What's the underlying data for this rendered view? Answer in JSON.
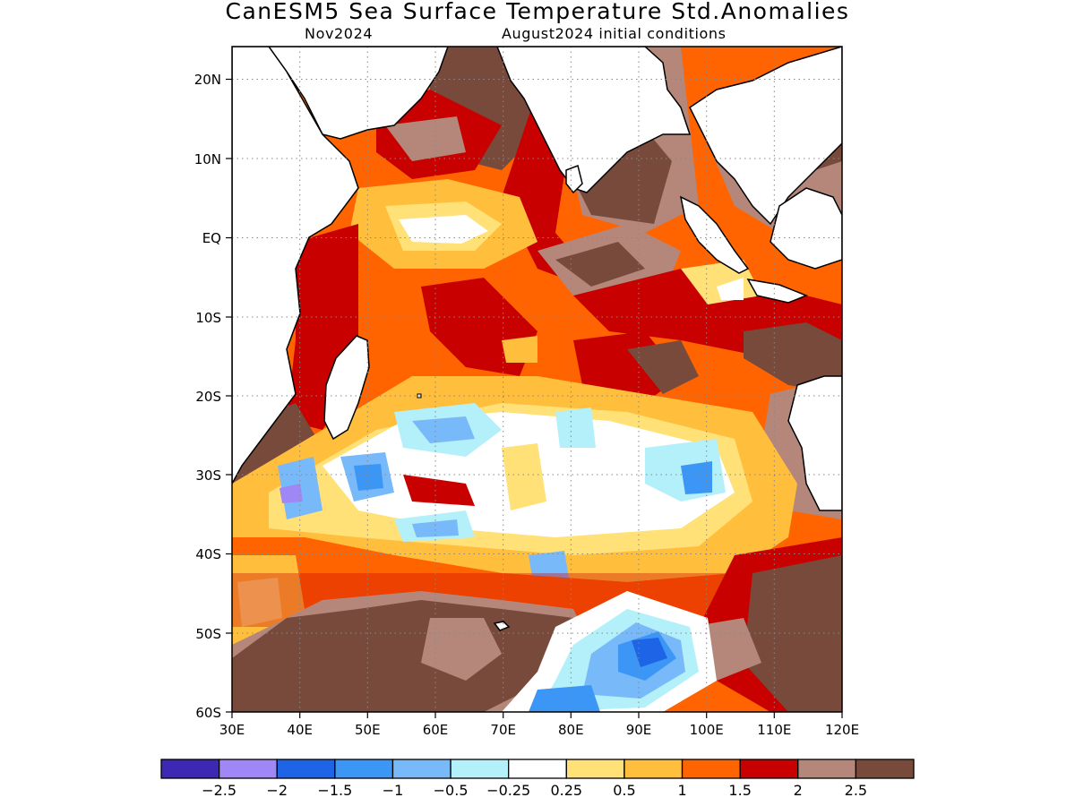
{
  "title": "CanESM5 Sea Surface Temperature Std.Anomalies",
  "subtitle_left": "Nov2024",
  "subtitle_right": "August2024 initial conditions",
  "map": {
    "lon_range": [
      30,
      120
    ],
    "lat_range": [
      -60,
      24
    ],
    "lon_ticks": [
      "30E",
      "40E",
      "50E",
      "60E",
      "70E",
      "80E",
      "90E",
      "100E",
      "110E",
      "120E"
    ],
    "lat_ticks": [
      "20N",
      "10N",
      "EQ",
      "10S",
      "20S",
      "30S",
      "40S",
      "50S",
      "60S"
    ],
    "grid": "dotted",
    "land_color": "#ffffff",
    "coastline_color": "#000000"
  },
  "colorbar": {
    "colors": [
      "#3c28b4",
      "#9f87f5",
      "#1e64e6",
      "#3c96f5",
      "#78b9fa",
      "#b4f0fa",
      "#ffffff",
      "#ffe178",
      "#ffbe3c",
      "#ff6400",
      "#c80000",
      "#b4877a",
      "#784a3c"
    ],
    "labels": [
      "−2.5",
      "−2",
      "−1.5",
      "−1",
      "−0.5",
      "−0.25",
      "0.25",
      "0.5",
      "1",
      "1.5",
      "2",
      "2.5"
    ]
  }
}
